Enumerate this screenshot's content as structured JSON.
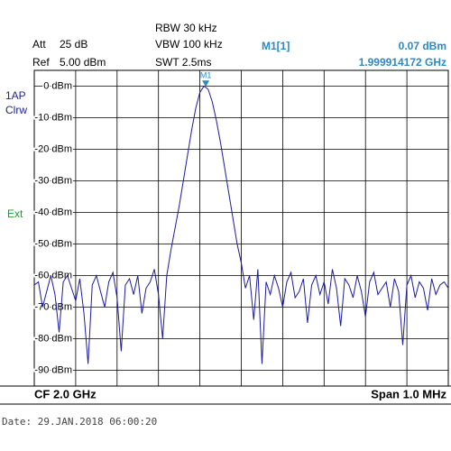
{
  "header": {
    "att_label": "Att",
    "att": "25 dB",
    "ref_label": "Ref",
    "ref": "5.00 dBm",
    "rbw": "RBW 30 kHz",
    "vbw": "VBW 100 kHz",
    "swt": "SWT 2.5ms",
    "trace_mode": "1AP",
    "trace_type": "Clrw",
    "trigger": "Ext"
  },
  "chart_data": {
    "type": "line",
    "x": [
      1.9995,
      1.99951,
      1.99952,
      1.99953,
      1.99954,
      1.99955,
      1.99956,
      1.99957,
      1.99958,
      1.99959,
      1.9996,
      1.99961,
      1.99962,
      1.99963,
      1.99964,
      1.99965,
      1.99966,
      1.99967,
      1.99968,
      1.99969,
      1.9997,
      1.99971,
      1.99972,
      1.99973,
      1.99974,
      1.99975,
      1.99976,
      1.99977,
      1.99978,
      1.99979,
      1.9998,
      1.99981,
      1.99982,
      1.99983,
      1.99984,
      1.99985,
      1.99986,
      1.99987,
      1.99988,
      1.99989,
      1.9999,
      1.99991,
      1.99992,
      1.99993,
      1.99994,
      1.99995,
      1.99996,
      1.99997,
      1.99998,
      1.99999,
      2.0,
      2.00001,
      2.00002,
      2.00003,
      2.00004,
      2.00005,
      2.00006,
      2.00007,
      2.00008,
      2.00009,
      2.0001,
      2.00011,
      2.00012,
      2.00013,
      2.00014,
      2.00015,
      2.00016,
      2.00017,
      2.00018,
      2.00019,
      2.0002,
      2.00021,
      2.00022,
      2.00023,
      2.00024,
      2.00025,
      2.00026,
      2.00027,
      2.00028,
      2.00029,
      2.0003,
      2.00031,
      2.00032,
      2.00033,
      2.00034,
      2.00035,
      2.00036,
      2.00037,
      2.00038,
      2.00039,
      2.0004,
      2.00041,
      2.00042,
      2.00043,
      2.00044,
      2.00045,
      2.00046,
      2.00047,
      2.00048,
      2.00049,
      2.0005
    ],
    "series": [
      {
        "name": "1AP",
        "color": "#1c1c9c",
        "values": [
          -63,
          -62,
          -70,
          -65,
          -60,
          -66,
          -78,
          -62,
          -60,
          -64,
          -68,
          -61,
          -72,
          -88,
          -63,
          -60,
          -65,
          -70,
          -62,
          -59,
          -67,
          -84,
          -63,
          -61,
          -66,
          -60,
          -72,
          -64,
          -62,
          -58,
          -66,
          -80,
          -60,
          -52,
          -45,
          -38,
          -30,
          -22,
          -14,
          -7,
          -2,
          0,
          -1,
          -5,
          -11,
          -18,
          -26,
          -34,
          -42,
          -50,
          -56,
          -64,
          -60,
          -74,
          -58,
          -88,
          -62,
          -66,
          -60,
          -64,
          -70,
          -62,
          -59,
          -67,
          -65,
          -61,
          -75,
          -63,
          -60,
          -66,
          -62,
          -69,
          -58,
          -64,
          -76,
          -61,
          -63,
          -67,
          -60,
          -65,
          -73,
          -62,
          -59,
          -66,
          -64,
          -62,
          -70,
          -61,
          -65,
          -82,
          -63,
          -60,
          -67,
          -62,
          -64,
          -71,
          -61,
          -66,
          -63,
          -62,
          -64
        ]
      }
    ],
    "xlim": [
      1.9995,
      2.0005
    ],
    "ylim": [
      -95,
      5
    ],
    "yticks": [
      {
        "value": 0,
        "label": "0 dBm"
      },
      {
        "value": -10,
        "label": "-10 dBm"
      },
      {
        "value": -20,
        "label": "-20 dBm"
      },
      {
        "value": -30,
        "label": "-30 dBm"
      },
      {
        "value": -40,
        "label": "-40 dBm"
      },
      {
        "value": -50,
        "label": "-50 dBm"
      },
      {
        "value": -60,
        "label": "-60 dBm"
      },
      {
        "value": -70,
        "label": "-70 dBm"
      },
      {
        "value": -80,
        "label": "-80 dBm"
      },
      {
        "value": -90,
        "label": "-90 dBm"
      }
    ],
    "grid": true,
    "marker": {
      "label": "M1",
      "name": "M1[1]",
      "x": 1.999914172,
      "value": 0.07,
      "value_label": "0.07 dBm",
      "x_label": "1.999914172 GHz"
    },
    "center": "CF 2.0 GHz",
    "span": "Span 1.0 MHz"
  },
  "footer": {
    "date": "Date: 29.JAN.2018  06:00:20"
  }
}
